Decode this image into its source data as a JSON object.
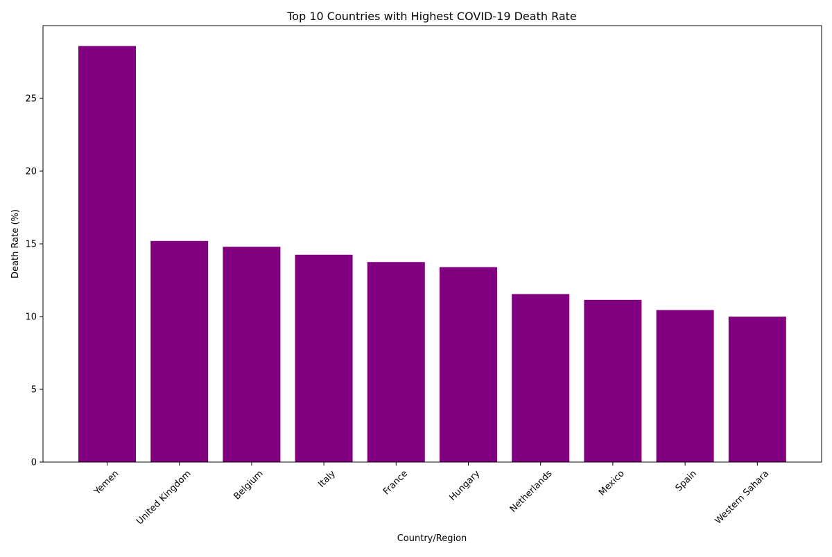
{
  "chart_data": {
    "type": "bar",
    "title": "Top 10 Countries with Highest COVID-19 Death Rate",
    "xlabel": "Country/Region",
    "ylabel": "Death Rate (%)",
    "categories": [
      "Yemen",
      "United Kingdom",
      "Belgium",
      "Italy",
      "France",
      "Hungary",
      "Netherlands",
      "Mexico",
      "Spain",
      "Western Sahara"
    ],
    "values": [
      28.6,
      15.2,
      14.8,
      14.25,
      13.75,
      13.4,
      11.55,
      11.15,
      10.45,
      10.0
    ],
    "ylim": [
      0,
      30.0
    ],
    "yticks": [
      0,
      5,
      10,
      15,
      20,
      25
    ],
    "bar_color": "#800080",
    "grid": false,
    "legend": "none"
  }
}
